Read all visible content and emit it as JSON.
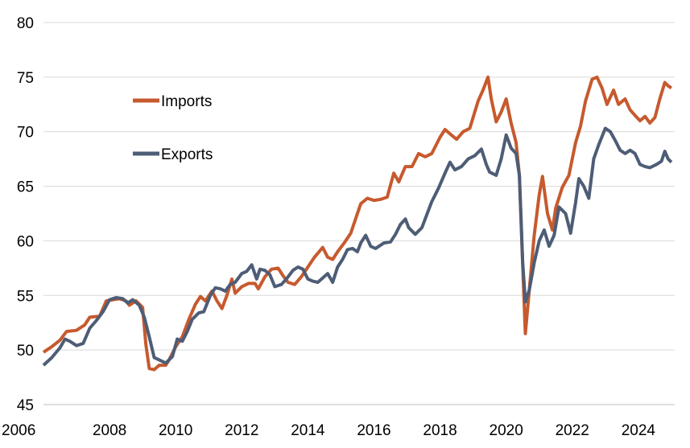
{
  "chart_data": {
    "type": "line",
    "title": "",
    "xlabel": "",
    "ylabel": "",
    "xlim": [
      2006,
      2025.1
    ],
    "ylim": [
      45,
      80
    ],
    "x_ticks": [
      "2006",
      "2008",
      "2010",
      "2012",
      "2014",
      "2016",
      "2018",
      "2020",
      "2022",
      "2024"
    ],
    "y_ticks": [
      "45",
      "50",
      "55",
      "60",
      "65",
      "70",
      "75",
      "80"
    ],
    "grid": "horizontal",
    "legend_placement": "upper-left",
    "series": [
      {
        "name": "Imports",
        "color": "#C65A2E",
        "points": [
          [
            2006.0,
            49.8
          ],
          [
            2006.25,
            50.3
          ],
          [
            2006.5,
            50.9
          ],
          [
            2006.7,
            51.7
          ],
          [
            2007.0,
            51.8
          ],
          [
            2007.25,
            52.3
          ],
          [
            2007.4,
            53.0
          ],
          [
            2007.7,
            53.1
          ],
          [
            2007.9,
            54.5
          ],
          [
            2008.1,
            54.6
          ],
          [
            2008.3,
            54.7
          ],
          [
            2008.5,
            54.5
          ],
          [
            2008.6,
            54.1
          ],
          [
            2008.8,
            54.5
          ],
          [
            2009.0,
            53.9
          ],
          [
            2009.1,
            50.5
          ],
          [
            2009.2,
            48.3
          ],
          [
            2009.35,
            48.2
          ],
          [
            2009.5,
            48.6
          ],
          [
            2009.7,
            48.6
          ],
          [
            2009.8,
            49.1
          ],
          [
            2010.0,
            50.3
          ],
          [
            2010.2,
            51.2
          ],
          [
            2010.4,
            52.8
          ],
          [
            2010.6,
            54.2
          ],
          [
            2010.75,
            54.9
          ],
          [
            2010.9,
            54.5
          ],
          [
            2011.1,
            55.4
          ],
          [
            2011.25,
            54.5
          ],
          [
            2011.4,
            53.8
          ],
          [
            2011.55,
            55.0
          ],
          [
            2011.7,
            56.5
          ],
          [
            2011.8,
            55.2
          ],
          [
            2012.0,
            55.8
          ],
          [
            2012.2,
            56.1
          ],
          [
            2012.4,
            56.1
          ],
          [
            2012.5,
            55.6
          ],
          [
            2012.7,
            56.7
          ],
          [
            2012.9,
            57.4
          ],
          [
            2013.1,
            57.5
          ],
          [
            2013.25,
            56.8
          ],
          [
            2013.4,
            56.2
          ],
          [
            2013.6,
            56.0
          ],
          [
            2013.8,
            56.7
          ],
          [
            2014.0,
            57.6
          ],
          [
            2014.2,
            58.5
          ],
          [
            2014.45,
            59.4
          ],
          [
            2014.6,
            58.5
          ],
          [
            2014.75,
            58.3
          ],
          [
            2014.9,
            59.0
          ],
          [
            2015.1,
            59.8
          ],
          [
            2015.3,
            60.7
          ],
          [
            2015.5,
            62.5
          ],
          [
            2015.6,
            63.4
          ],
          [
            2015.8,
            63.9
          ],
          [
            2016.0,
            63.7
          ],
          [
            2016.2,
            63.8
          ],
          [
            2016.4,
            64.0
          ],
          [
            2016.6,
            66.2
          ],
          [
            2016.75,
            65.4
          ],
          [
            2016.95,
            66.8
          ],
          [
            2017.15,
            66.8
          ],
          [
            2017.35,
            68.0
          ],
          [
            2017.55,
            67.7
          ],
          [
            2017.75,
            68.0
          ],
          [
            2018.0,
            69.5
          ],
          [
            2018.15,
            70.2
          ],
          [
            2018.3,
            69.8
          ],
          [
            2018.5,
            69.3
          ],
          [
            2018.7,
            70.0
          ],
          [
            2018.9,
            70.3
          ],
          [
            2019.0,
            71.3
          ],
          [
            2019.15,
            72.8
          ],
          [
            2019.3,
            73.8
          ],
          [
            2019.45,
            75.0
          ],
          [
            2019.55,
            73.0
          ],
          [
            2019.7,
            70.9
          ],
          [
            2019.85,
            71.8
          ],
          [
            2020.0,
            73.0
          ],
          [
            2020.15,
            70.8
          ],
          [
            2020.3,
            69.0
          ],
          [
            2020.4,
            66.0
          ],
          [
            2020.5,
            57.8
          ],
          [
            2020.58,
            51.5
          ],
          [
            2020.7,
            55.5
          ],
          [
            2020.85,
            60.5
          ],
          [
            2021.0,
            64.2
          ],
          [
            2021.1,
            65.9
          ],
          [
            2021.25,
            62.5
          ],
          [
            2021.4,
            61.0
          ],
          [
            2021.5,
            63.0
          ],
          [
            2021.7,
            64.9
          ],
          [
            2021.9,
            66.0
          ],
          [
            2022.1,
            69.0
          ],
          [
            2022.25,
            70.5
          ],
          [
            2022.4,
            72.8
          ],
          [
            2022.6,
            74.8
          ],
          [
            2022.75,
            75.0
          ],
          [
            2022.9,
            74.0
          ],
          [
            2023.05,
            72.5
          ],
          [
            2023.25,
            73.8
          ],
          [
            2023.4,
            72.5
          ],
          [
            2023.6,
            73.0
          ],
          [
            2023.75,
            72.0
          ],
          [
            2023.9,
            71.5
          ],
          [
            2024.05,
            71.0
          ],
          [
            2024.2,
            71.4
          ],
          [
            2024.35,
            70.8
          ],
          [
            2024.5,
            71.3
          ],
          [
            2024.65,
            73.0
          ],
          [
            2024.8,
            74.5
          ],
          [
            2024.9,
            74.2
          ],
          [
            2025.0,
            74.0
          ]
        ]
      },
      {
        "name": "Exports",
        "color": "#4E5D76",
        "points": [
          [
            2006.0,
            48.6
          ],
          [
            2006.25,
            49.3
          ],
          [
            2006.5,
            50.2
          ],
          [
            2006.65,
            51.0
          ],
          [
            2006.8,
            50.8
          ],
          [
            2007.0,
            50.4
          ],
          [
            2007.2,
            50.6
          ],
          [
            2007.4,
            52.0
          ],
          [
            2007.6,
            52.7
          ],
          [
            2007.8,
            53.5
          ],
          [
            2008.0,
            54.6
          ],
          [
            2008.2,
            54.8
          ],
          [
            2008.4,
            54.7
          ],
          [
            2008.55,
            54.3
          ],
          [
            2008.7,
            54.6
          ],
          [
            2008.9,
            54.1
          ],
          [
            2009.05,
            53.0
          ],
          [
            2009.2,
            51.2
          ],
          [
            2009.35,
            49.3
          ],
          [
            2009.5,
            49.1
          ],
          [
            2009.7,
            48.8
          ],
          [
            2009.9,
            49.4
          ],
          [
            2010.05,
            51.0
          ],
          [
            2010.2,
            50.8
          ],
          [
            2010.35,
            51.7
          ],
          [
            2010.5,
            52.8
          ],
          [
            2010.7,
            53.4
          ],
          [
            2010.85,
            53.5
          ],
          [
            2011.05,
            55.0
          ],
          [
            2011.2,
            55.7
          ],
          [
            2011.35,
            55.6
          ],
          [
            2011.5,
            55.4
          ],
          [
            2011.65,
            56.0
          ],
          [
            2011.8,
            56.2
          ],
          [
            2012.0,
            57.0
          ],
          [
            2012.15,
            57.2
          ],
          [
            2012.3,
            57.8
          ],
          [
            2012.45,
            56.5
          ],
          [
            2012.55,
            57.4
          ],
          [
            2012.7,
            57.3
          ],
          [
            2012.85,
            56.9
          ],
          [
            2013.0,
            55.8
          ],
          [
            2013.2,
            56.0
          ],
          [
            2013.35,
            56.5
          ],
          [
            2013.55,
            57.3
          ],
          [
            2013.7,
            57.6
          ],
          [
            2013.85,
            57.4
          ],
          [
            2014.0,
            56.5
          ],
          [
            2014.15,
            56.3
          ],
          [
            2014.3,
            56.2
          ],
          [
            2014.45,
            56.6
          ],
          [
            2014.6,
            57.0
          ],
          [
            2014.75,
            56.2
          ],
          [
            2014.9,
            57.6
          ],
          [
            2015.05,
            58.3
          ],
          [
            2015.2,
            59.2
          ],
          [
            2015.35,
            59.3
          ],
          [
            2015.5,
            59.0
          ],
          [
            2015.6,
            59.8
          ],
          [
            2015.75,
            60.5
          ],
          [
            2015.9,
            59.5
          ],
          [
            2016.05,
            59.3
          ],
          [
            2016.3,
            59.8
          ],
          [
            2016.5,
            59.9
          ],
          [
            2016.65,
            60.6
          ],
          [
            2016.8,
            61.5
          ],
          [
            2016.95,
            62.0
          ],
          [
            2017.05,
            61.2
          ],
          [
            2017.25,
            60.6
          ],
          [
            2017.45,
            61.2
          ],
          [
            2017.6,
            62.4
          ],
          [
            2017.75,
            63.6
          ],
          [
            2017.95,
            64.8
          ],
          [
            2018.15,
            66.2
          ],
          [
            2018.3,
            67.2
          ],
          [
            2018.45,
            66.5
          ],
          [
            2018.65,
            66.8
          ],
          [
            2018.85,
            67.5
          ],
          [
            2019.05,
            67.8
          ],
          [
            2019.25,
            68.4
          ],
          [
            2019.4,
            67.0
          ],
          [
            2019.5,
            66.3
          ],
          [
            2019.7,
            66.0
          ],
          [
            2019.85,
            67.5
          ],
          [
            2020.0,
            69.7
          ],
          [
            2020.15,
            68.5
          ],
          [
            2020.3,
            68.0
          ],
          [
            2020.4,
            66.0
          ],
          [
            2020.5,
            58.0
          ],
          [
            2020.58,
            54.4
          ],
          [
            2020.7,
            55.5
          ],
          [
            2020.85,
            58.0
          ],
          [
            2021.0,
            60.0
          ],
          [
            2021.15,
            61.0
          ],
          [
            2021.3,
            59.5
          ],
          [
            2021.45,
            60.5
          ],
          [
            2021.6,
            63.1
          ],
          [
            2021.8,
            62.5
          ],
          [
            2021.95,
            60.7
          ],
          [
            2022.1,
            63.5
          ],
          [
            2022.2,
            65.7
          ],
          [
            2022.35,
            65.0
          ],
          [
            2022.5,
            63.9
          ],
          [
            2022.65,
            67.5
          ],
          [
            2022.8,
            68.8
          ],
          [
            2023.0,
            70.3
          ],
          [
            2023.15,
            70.0
          ],
          [
            2023.3,
            69.2
          ],
          [
            2023.45,
            68.3
          ],
          [
            2023.6,
            68.0
          ],
          [
            2023.75,
            68.3
          ],
          [
            2023.9,
            68.0
          ],
          [
            2024.05,
            67.0
          ],
          [
            2024.2,
            66.8
          ],
          [
            2024.35,
            66.7
          ],
          [
            2024.55,
            67.0
          ],
          [
            2024.7,
            67.3
          ],
          [
            2024.8,
            68.2
          ],
          [
            2024.9,
            67.5
          ],
          [
            2025.0,
            67.2
          ]
        ]
      }
    ]
  }
}
